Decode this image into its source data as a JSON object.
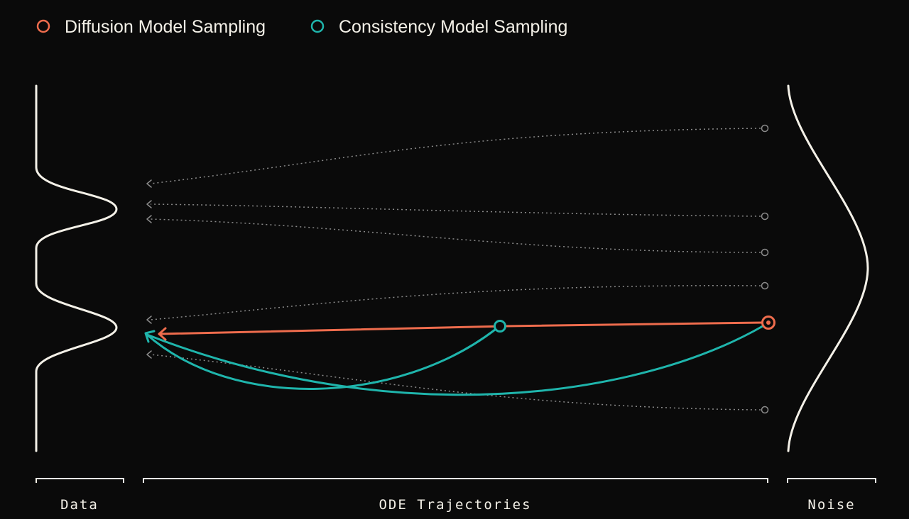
{
  "legend": {
    "diffusion_label": "Diffusion Model Sampling",
    "consistency_label": "Consistency Model Sampling"
  },
  "axis_labels": {
    "data": "Data",
    "trajectories": "ODE Trajectories",
    "noise": "Noise"
  },
  "colors": {
    "background": "#0a0a0a",
    "diffusion": "#ee6c4d",
    "consistency": "#1fb5ac",
    "foreground": "#f4f1e8",
    "trajectory": "#8a8a8a"
  }
}
